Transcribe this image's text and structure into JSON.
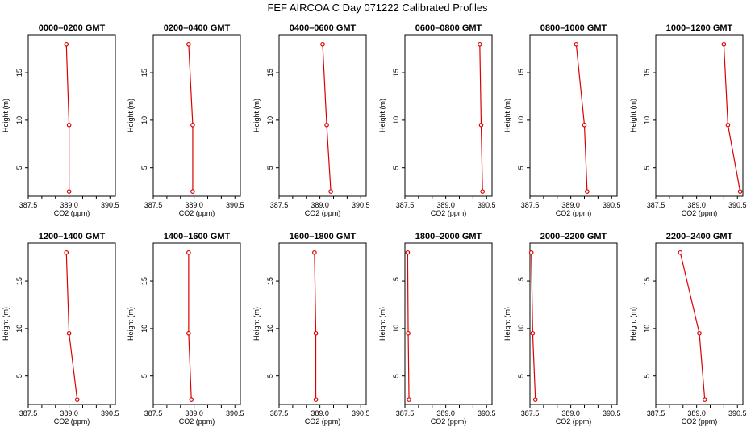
{
  "figure": {
    "title": "FEF AIRCOA C  Day 071222  Calibrated Profiles"
  },
  "colors": {
    "series": "#dd0000",
    "axis": "#000000"
  },
  "chart_data": [
    {
      "type": "line",
      "title": "0000–0200 GMT",
      "xlabel": "CO2 (ppm)",
      "ylabel": "Height (m)",
      "xlim": [
        387.5,
        390.7
      ],
      "ylim": [
        2,
        19
      ],
      "xticks": [
        "387.5",
        "389.0",
        "390.5"
      ],
      "yticks": [
        "5",
        "10",
        "15"
      ],
      "x": [
        388.9,
        389.0,
        389.0
      ],
      "y": [
        18,
        9.5,
        2.5
      ]
    },
    {
      "type": "line",
      "title": "0200–0400 GMT",
      "xlabel": "CO2 (ppm)",
      "ylabel": "Height (m)",
      "xlim": [
        387.5,
        390.7
      ],
      "ylim": [
        2,
        19
      ],
      "xticks": [
        "387.5",
        "389.0",
        "390.5"
      ],
      "yticks": [
        "5",
        "10",
        "15"
      ],
      "x": [
        388.8,
        388.95,
        388.95
      ],
      "y": [
        18,
        9.5,
        2.5
      ]
    },
    {
      "type": "line",
      "title": "0400–0600 GMT",
      "xlabel": "CO2 (ppm)",
      "ylabel": "Height (m)",
      "xlim": [
        387.5,
        390.7
      ],
      "ylim": [
        2,
        19
      ],
      "xticks": [
        "387.5",
        "389.0",
        "390.5"
      ],
      "yticks": [
        "5",
        "10",
        "15"
      ],
      "x": [
        389.1,
        389.25,
        389.4
      ],
      "y": [
        18,
        9.5,
        2.5
      ]
    },
    {
      "type": "line",
      "title": "0600–0800 GMT",
      "xlabel": "CO2 (ppm)",
      "ylabel": "Height (m)",
      "xlim": [
        387.5,
        390.7
      ],
      "ylim": [
        2,
        19
      ],
      "xticks": [
        "387.5",
        "389.0",
        "390.5"
      ],
      "yticks": [
        "5",
        "10",
        "15"
      ],
      "x": [
        390.25,
        390.3,
        390.35
      ],
      "y": [
        18,
        9.5,
        2.5
      ]
    },
    {
      "type": "line",
      "title": "0800–1000 GMT",
      "xlabel": "CO2 (ppm)",
      "ylabel": "Height (m)",
      "xlim": [
        387.5,
        390.7
      ],
      "ylim": [
        2,
        19
      ],
      "xticks": [
        "387.5",
        "389.0",
        "390.5"
      ],
      "yticks": [
        "5",
        "10",
        "15"
      ],
      "x": [
        389.2,
        389.5,
        389.6
      ],
      "y": [
        18,
        9.5,
        2.5
      ]
    },
    {
      "type": "line",
      "title": "1000–1200 GMT",
      "xlabel": "CO2 (ppm)",
      "ylabel": "Height (m)",
      "xlim": [
        387.5,
        390.7
      ],
      "ylim": [
        2,
        19
      ],
      "xticks": [
        "387.5",
        "389.0",
        "390.5"
      ],
      "yticks": [
        "5",
        "10",
        "15"
      ],
      "x": [
        390.0,
        390.15,
        390.6
      ],
      "y": [
        18,
        9.5,
        2.5
      ]
    },
    {
      "type": "line",
      "title": "1200–1400 GMT",
      "xlabel": "CO2 (ppm)",
      "ylabel": "Height (m)",
      "xlim": [
        387.5,
        390.7
      ],
      "ylim": [
        2,
        19
      ],
      "xticks": [
        "387.5",
        "389.0",
        "390.5"
      ],
      "yticks": [
        "5",
        "10",
        "15"
      ],
      "x": [
        388.9,
        389.0,
        389.3
      ],
      "y": [
        18,
        9.5,
        2.5
      ]
    },
    {
      "type": "line",
      "title": "1400–1600 GMT",
      "xlabel": "CO2 (ppm)",
      "ylabel": "Height (m)",
      "xlim": [
        387.5,
        390.7
      ],
      "ylim": [
        2,
        19
      ],
      "xticks": [
        "387.5",
        "389.0",
        "390.5"
      ],
      "yticks": [
        "5",
        "10",
        "15"
      ],
      "x": [
        388.8,
        388.8,
        388.9
      ],
      "y": [
        18,
        9.5,
        2.5
      ]
    },
    {
      "type": "line",
      "title": "1600–1800 GMT",
      "xlabel": "CO2 (ppm)",
      "ylabel": "Height (m)",
      "xlim": [
        387.5,
        390.7
      ],
      "ylim": [
        2,
        19
      ],
      "xticks": [
        "387.5",
        "389.0",
        "390.5"
      ],
      "yticks": [
        "5",
        "10",
        "15"
      ],
      "x": [
        388.8,
        388.85,
        388.85
      ],
      "y": [
        18,
        9.5,
        2.5
      ]
    },
    {
      "type": "line",
      "title": "1800–2000 GMT",
      "xlabel": "CO2 (ppm)",
      "ylabel": "Height (m)",
      "xlim": [
        387.5,
        390.7
      ],
      "ylim": [
        2,
        19
      ],
      "xticks": [
        "387.5",
        "389.0",
        "390.5"
      ],
      "yticks": [
        "5",
        "10",
        "15"
      ],
      "x": [
        387.6,
        387.62,
        387.65
      ],
      "y": [
        18,
        9.5,
        2.5
      ]
    },
    {
      "type": "line",
      "title": "2000–2200 GMT",
      "xlabel": "CO2 (ppm)",
      "ylabel": "Height (m)",
      "xlim": [
        387.5,
        390.7
      ],
      "ylim": [
        2,
        19
      ],
      "xticks": [
        "387.5",
        "389.0",
        "390.5"
      ],
      "yticks": [
        "5",
        "10",
        "15"
      ],
      "x": [
        387.55,
        387.6,
        387.7
      ],
      "y": [
        18,
        9.5,
        2.5
      ]
    },
    {
      "type": "line",
      "title": "2200–2400 GMT",
      "xlabel": "CO2 (ppm)",
      "ylabel": "Height (m)",
      "xlim": [
        387.5,
        390.7
      ],
      "ylim": [
        2,
        19
      ],
      "xticks": [
        "387.5",
        "389.0",
        "390.5"
      ],
      "yticks": [
        "5",
        "10",
        "15"
      ],
      "x": [
        388.4,
        389.1,
        389.3
      ],
      "y": [
        18,
        9.5,
        2.5
      ]
    }
  ]
}
